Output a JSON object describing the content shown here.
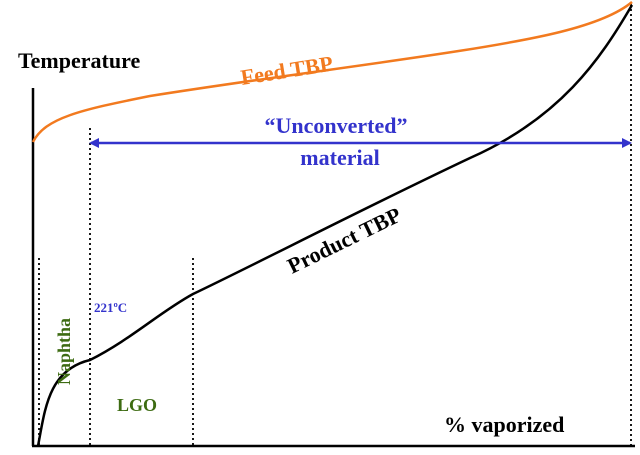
{
  "labels": {
    "y_axis": "Temperature",
    "x_axis": "% vaporized",
    "feed_curve": "Feed TBP",
    "product_curve": "Product TBP",
    "unconverted_line1": "“Unconverted”",
    "unconverted_line2": "material",
    "cut_temperature": "221ºC",
    "naphtha": "Naphtha",
    "lgo": "LGO"
  },
  "colors": {
    "feed_curve": "#f27a1f",
    "product_curve": "#000000",
    "unconverted_arrow": "#3333cc",
    "cut_temperature": "#3333cc",
    "fraction_labels": "#3d6b12",
    "axes": "#000000"
  }
}
